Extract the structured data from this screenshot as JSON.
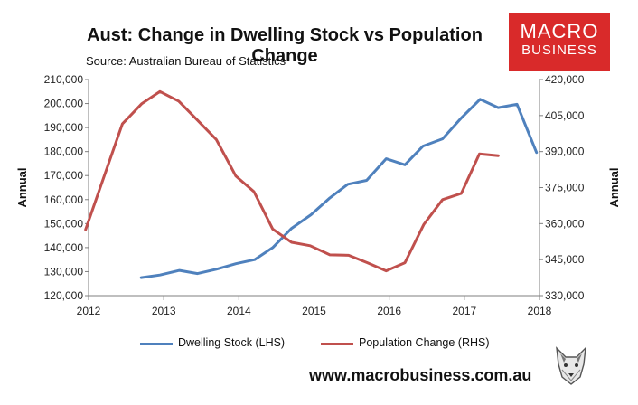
{
  "header": {
    "title": "Aust: Change in Dwelling Stock vs Population Change",
    "source": "Source: Australian Bureau of Statistics"
  },
  "logo": {
    "line1": "MACRO",
    "line2": "BUSINESS"
  },
  "footer": {
    "url": "www.macrobusiness.com.au"
  },
  "colors": {
    "dwelling": "#4f81bd",
    "population": "#c0504d",
    "brand": "#d92a2a",
    "axis": "#7f7f7f"
  },
  "chart_data": {
    "type": "line",
    "title": "Aust: Change in Dwelling Stock vs Population Change",
    "x_ticks": [
      "2012",
      "2013",
      "2014",
      "2015",
      "2016",
      "2017",
      "2018"
    ],
    "xlim": [
      2012,
      2018
    ],
    "y_left": {
      "label": "Annual",
      "lim": [
        120000,
        210000
      ],
      "ticks": [
        "120,000",
        "130,000",
        "140,000",
        "150,000",
        "160,000",
        "170,000",
        "180,000",
        "190,000",
        "200,000",
        "210,000"
      ]
    },
    "y_right": {
      "label": "Annual",
      "lim": [
        330000,
        420000
      ],
      "ticks": [
        "330,000",
        "345,000",
        "360,000",
        "375,000",
        "390,000",
        "405,000",
        "420,000"
      ]
    },
    "grid": false,
    "legend_position": "bottom",
    "series": [
      {
        "name": "Dwelling Stock (LHS)",
        "axis": "left",
        "x": [
          2012.7,
          2012.95,
          2013.21,
          2013.45,
          2013.7,
          2013.96,
          2014.21,
          2014.45,
          2014.7,
          2014.96,
          2015.21,
          2015.45,
          2015.7,
          2015.96,
          2016.21,
          2016.45,
          2016.71,
          2016.96,
          2017.21,
          2017.45,
          2017.7,
          2017.96
        ],
        "y": [
          127500,
          128600,
          130500,
          129200,
          131000,
          133300,
          135000,
          140000,
          148000,
          153700,
          160700,
          166400,
          168000,
          177000,
          174500,
          182300,
          185300,
          194000,
          201800,
          198300,
          199700,
          179600
        ]
      },
      {
        "name": "Population Change (RHS)",
        "axis": "right",
        "x": [
          2011.96,
          2012.45,
          2012.71,
          2012.95,
          2013.2,
          2013.45,
          2013.7,
          2013.96,
          2014.2,
          2014.45,
          2014.7,
          2014.95,
          2015.21,
          2015.46,
          2015.71,
          2015.96,
          2016.21,
          2016.46,
          2016.71,
          2016.96,
          2017.2,
          2017.45
        ],
        "y": [
          357500,
          401500,
          410000,
          415000,
          411000,
          403000,
          395000,
          379800,
          373300,
          357700,
          352200,
          350800,
          347000,
          346800,
          343700,
          340300,
          343700,
          359600,
          370000,
          372600,
          389000,
          388300
        ]
      }
    ]
  }
}
